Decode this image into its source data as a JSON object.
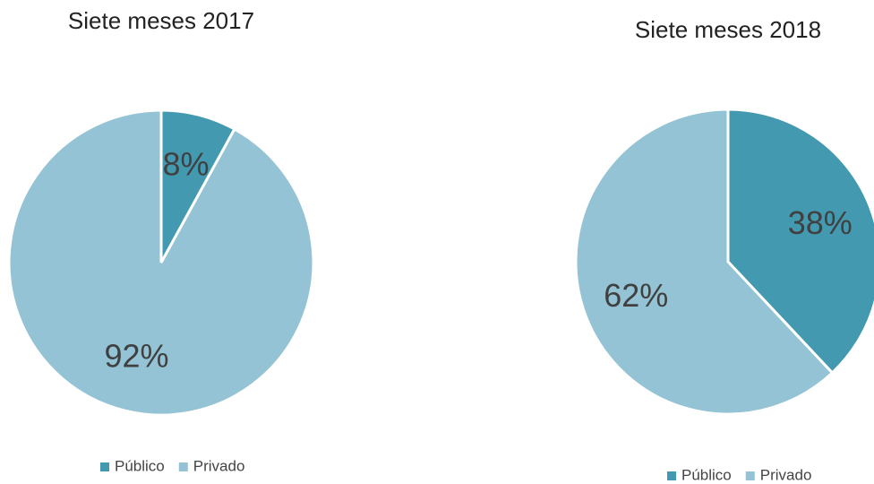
{
  "chart_data": [
    {
      "type": "pie",
      "title": "Siete meses 2017",
      "categories": [
        "Público",
        "Privado"
      ],
      "values": [
        8,
        92
      ],
      "value_labels": [
        "8%",
        "92%"
      ],
      "colors": [
        "#4399b0",
        "#93c3d4"
      ]
    },
    {
      "type": "pie",
      "title": "Siete meses 2018",
      "categories": [
        "Público",
        "Privado"
      ],
      "values": [
        38,
        62
      ],
      "value_labels": [
        "38%",
        "62%"
      ],
      "colors": [
        "#4399b0",
        "#93c3d4"
      ]
    }
  ]
}
